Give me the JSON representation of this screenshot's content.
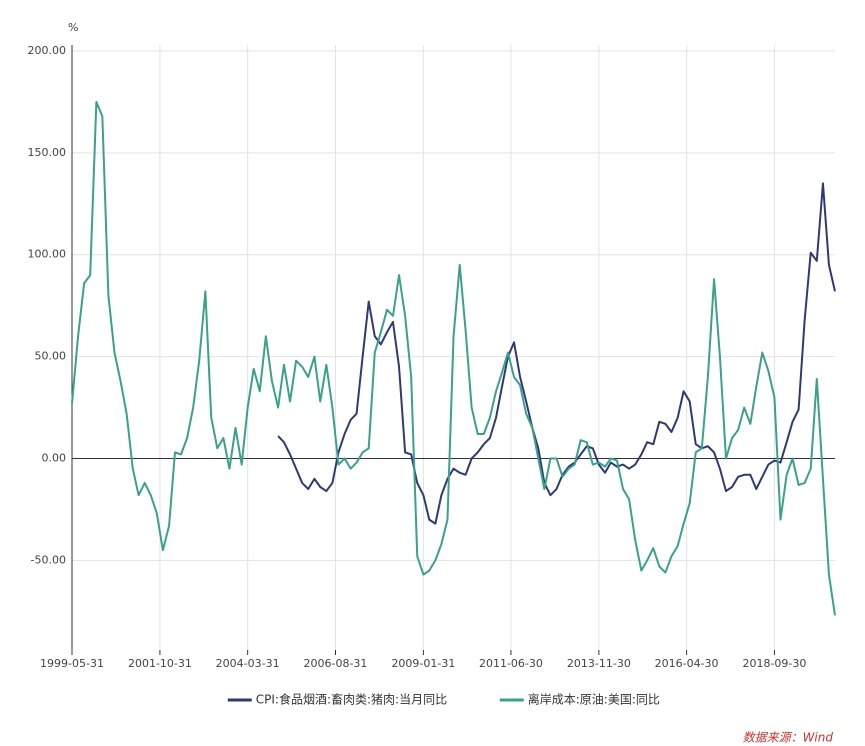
{
  "chart_data": {
    "type": "line",
    "y_label": "%",
    "source": "数据来源：Wind",
    "xlim": [
      "1999-05-31",
      "2020-05-31"
    ],
    "xticks": [
      "1999-05-31",
      "2001-10-31",
      "2004-03-31",
      "2006-08-31",
      "2009-01-31",
      "2011-06-30",
      "2013-11-30",
      "2016-04-30",
      "2018-09-30"
    ],
    "ylim": [
      -94,
      200
    ],
    "yticks": [
      {
        "value": -50,
        "label": "-50.00"
      },
      {
        "value": 0,
        "label": "0.00"
      },
      {
        "value": 50,
        "label": "50.00"
      },
      {
        "value": 100,
        "label": "100.00"
      },
      {
        "value": 150,
        "label": "150.00"
      },
      {
        "value": 200,
        "label": "200.00"
      }
    ],
    "grid": true,
    "legend": "bottom",
    "x": [
      "1999-05-31",
      "1999-07-31",
      "1999-09-30",
      "1999-11-30",
      "2000-01-31",
      "2000-03-31",
      "2000-05-31",
      "2000-07-31",
      "2000-09-30",
      "2000-11-30",
      "2001-01-31",
      "2001-03-31",
      "2001-05-31",
      "2001-07-31",
      "2001-09-30",
      "2001-11-30",
      "2002-01-31",
      "2002-03-31",
      "2002-05-31",
      "2002-07-31",
      "2002-09-30",
      "2002-11-30",
      "2003-01-31",
      "2003-03-31",
      "2003-05-31",
      "2003-07-31",
      "2003-09-30",
      "2003-11-30",
      "2004-01-31",
      "2004-03-31",
      "2004-05-31",
      "2004-07-31",
      "2004-09-30",
      "2004-11-30",
      "2005-01-31",
      "2005-03-31",
      "2005-05-31",
      "2005-07-31",
      "2005-09-30",
      "2005-11-30",
      "2006-01-31",
      "2006-03-31",
      "2006-05-31",
      "2006-07-31",
      "2006-09-30",
      "2006-11-30",
      "2007-01-31",
      "2007-03-31",
      "2007-05-31",
      "2007-07-31",
      "2007-09-30",
      "2007-11-30",
      "2008-01-31",
      "2008-03-31",
      "2008-05-31",
      "2008-07-31",
      "2008-09-30",
      "2008-11-30",
      "2009-01-31",
      "2009-03-31",
      "2009-05-31",
      "2009-07-31",
      "2009-09-30",
      "2009-11-30",
      "2010-01-31",
      "2010-03-31",
      "2010-05-31",
      "2010-07-31",
      "2010-09-30",
      "2010-11-30",
      "2011-01-31",
      "2011-03-31",
      "2011-05-31",
      "2011-07-31",
      "2011-09-30",
      "2011-11-30",
      "2012-01-31",
      "2012-03-31",
      "2012-05-31",
      "2012-07-31",
      "2012-09-30",
      "2012-11-30",
      "2013-01-31",
      "2013-03-31",
      "2013-05-31",
      "2013-07-31",
      "2013-09-30",
      "2013-11-30",
      "2014-01-31",
      "2014-03-31",
      "2014-05-31",
      "2014-07-31",
      "2014-09-30",
      "2014-11-30",
      "2015-01-31",
      "2015-03-31",
      "2015-05-31",
      "2015-07-31",
      "2015-09-30",
      "2015-11-30",
      "2016-01-31",
      "2016-03-31",
      "2016-05-31",
      "2016-07-31",
      "2016-09-30",
      "2016-11-30",
      "2017-01-31",
      "2017-03-31",
      "2017-05-31",
      "2017-07-31",
      "2017-09-30",
      "2017-11-30",
      "2018-01-31",
      "2018-03-31",
      "2018-05-31",
      "2018-07-31",
      "2018-09-30",
      "2018-11-30",
      "2019-01-31",
      "2019-03-31",
      "2019-05-31",
      "2019-07-31",
      "2019-09-30",
      "2019-11-30",
      "2020-01-31",
      "2020-03-31",
      "2020-05-31"
    ],
    "series": [
      {
        "name": "CPI:食品烟酒:畜肉类:猪肉:当月同比",
        "color": "#2e3a78",
        "values": [
          null,
          null,
          null,
          null,
          null,
          null,
          null,
          null,
          null,
          null,
          null,
          null,
          null,
          null,
          null,
          null,
          null,
          null,
          null,
          null,
          null,
          null,
          null,
          null,
          null,
          null,
          null,
          null,
          null,
          null,
          null,
          null,
          null,
          null,
          11,
          8,
          2,
          -5,
          -12,
          -15,
          -10,
          -14,
          -16,
          -12,
          3,
          12,
          19,
          22,
          50,
          77,
          60,
          56,
          62,
          67,
          45,
          3,
          2,
          -12,
          -18,
          -30,
          -32,
          -18,
          -10,
          -5,
          -7,
          -8,
          0,
          3,
          7,
          10,
          20,
          35,
          50,
          57,
          40,
          28,
          15,
          5,
          -12,
          -18,
          -15,
          -8,
          -4,
          -2,
          2,
          6,
          5,
          -3,
          -7,
          -2,
          -4,
          -3,
          -5,
          -3,
          2,
          8,
          7,
          18,
          17,
          13,
          20,
          33,
          28,
          7,
          5,
          6,
          3,
          -5,
          -16,
          -14,
          -9,
          -8,
          -8,
          -15,
          -9,
          -3,
          -1,
          -2,
          8,
          18,
          24,
          68,
          101,
          97,
          135,
          95,
          82
        ]
      },
      {
        "name": "离岸成本:原油:美国:同比",
        "color": "#3aa18a",
        "values": [
          27,
          60,
          86,
          90,
          175,
          168,
          80,
          52,
          38,
          22,
          -5,
          -18,
          -12,
          -18,
          -27,
          -45,
          -33,
          3,
          2,
          10,
          25,
          48,
          82,
          20,
          5,
          10,
          -5,
          15,
          -3,
          25,
          44,
          33,
          60,
          38,
          25,
          46,
          28,
          48,
          45,
          40,
          50,
          28,
          46,
          25,
          -3,
          0,
          -5,
          -2,
          3,
          5,
          52,
          62,
          73,
          70,
          90,
          70,
          40,
          -48,
          -57,
          -55,
          -50,
          -42,
          -30,
          60,
          95,
          63,
          25,
          12,
          12,
          20,
          33,
          42,
          52,
          40,
          36,
          22,
          15,
          0,
          -15,
          0,
          0,
          -9,
          -5,
          -3,
          9,
          8,
          -3,
          -2,
          -4,
          0,
          -1,
          -15,
          -20,
          -40,
          -55,
          -50,
          -44,
          -53,
          -56,
          -48,
          -43,
          -32,
          -22,
          3,
          5,
          40,
          88,
          50,
          0,
          10,
          14,
          25,
          17,
          35,
          52,
          43,
          30,
          -30,
          -8,
          0,
          -13,
          -12,
          -5,
          39,
          -10,
          -57,
          -77
        ]
      }
    ]
  }
}
